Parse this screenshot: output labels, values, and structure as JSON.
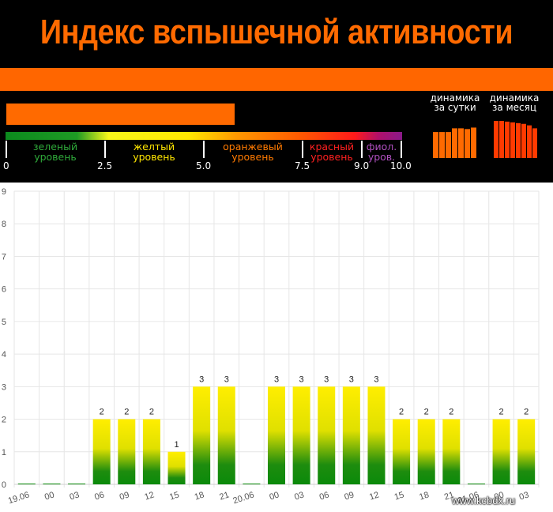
{
  "header": {
    "title": "Индекс вспышечной активности",
    "colors": {
      "background": "#000000",
      "accent": "#ff6600"
    },
    "current_level_fraction": 0.576,
    "scale": {
      "levels": [
        {
          "line1": "зеленый",
          "line2": "уровень",
          "color": "#2faa3a",
          "range": [
            0,
            2.5
          ]
        },
        {
          "line1": "желтый",
          "line2": "уровень",
          "color": "#ffe600",
          "range": [
            2.5,
            5.0
          ]
        },
        {
          "line1": "оранжевый",
          "line2": "уровень",
          "color": "#ff7a00",
          "range": [
            5.0,
            7.5
          ]
        },
        {
          "line1": "красный",
          "line2": "уровень",
          "color": "#ff2020",
          "range": [
            7.5,
            9.0
          ]
        },
        {
          "line1": "фиол.",
          "line2": "уров.",
          "color": "#b050c0",
          "range": [
            9.0,
            10.0
          ]
        }
      ],
      "ticks": [
        "0",
        "2.5",
        "5.0",
        "7.5",
        "9.0",
        "10.0"
      ]
    },
    "dynamics": {
      "day": {
        "line1": "динамика",
        "line2": "за сутки",
        "color": "#ff6a00",
        "values": [
          0.7,
          0.7,
          0.7,
          0.8,
          0.8,
          0.78,
          0.82
        ]
      },
      "month": {
        "line1": "динамика",
        "line2": "за месяц",
        "color": "#ff3a00",
        "values": [
          1.0,
          1.0,
          0.98,
          0.96,
          0.94,
          0.92,
          0.88,
          0.8
        ]
      }
    }
  },
  "chart_data": {
    "type": "bar",
    "categories": [
      "19.06",
      "00",
      "03",
      "06",
      "09",
      "12",
      "15",
      "18",
      "21",
      "20.06",
      "00",
      "03",
      "06",
      "09",
      "12",
      "15",
      "18",
      "21",
      "21.06",
      "00",
      "03"
    ],
    "values": [
      0,
      0,
      0,
      2,
      2,
      2,
      1,
      3,
      3,
      0,
      3,
      3,
      3,
      3,
      3,
      2,
      2,
      2,
      0,
      2,
      2
    ],
    "ylim": [
      0,
      9
    ],
    "yticks": [
      "0",
      "1",
      "2",
      "3",
      "4",
      "5",
      "6",
      "7",
      "8",
      "9"
    ],
    "grid": true,
    "bar_gradient": {
      "top": "#ffee00",
      "bottom": "#0a8a0a"
    }
  },
  "watermark": "www.kcbdx.ru"
}
